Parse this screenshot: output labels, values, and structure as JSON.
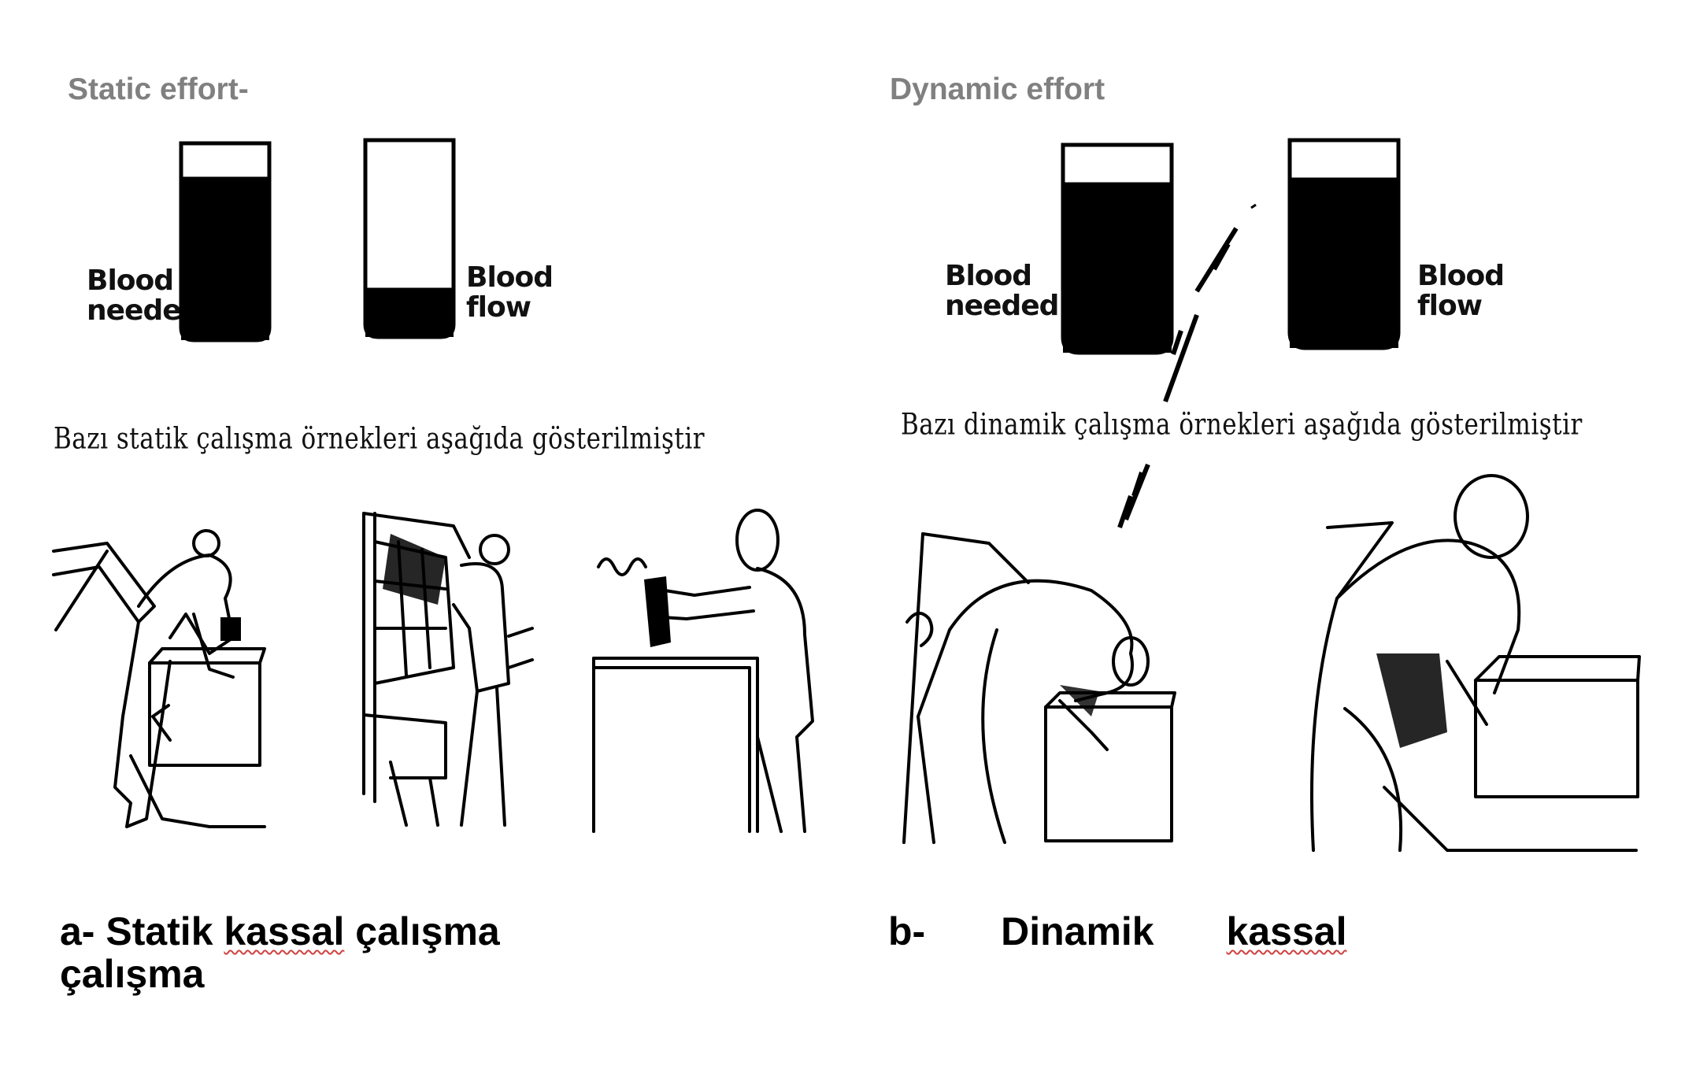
{
  "static": {
    "heading": "Static effort-",
    "jar_needed_label": [
      "Blood",
      "needed"
    ],
    "jar_flow_label": [
      "Blood",
      "flow"
    ],
    "examples_text": "Bazı statik çalışma örnekleri aşağıda gösterilmiştir",
    "caption_prefix": "a- Statik",
    "caption_word2": "kassal",
    "caption_word3": "çalışma",
    "caption_line2": "çalışma"
  },
  "dynamic": {
    "heading": "Dynamic effort",
    "jar_needed_label": [
      "Blood",
      "needed"
    ],
    "jar_flow_label": [
      "Blood",
      "flow"
    ],
    "examples_text": "Bazı dinamik çalışma örnekleri aşağıda gösterilmiştir",
    "caption_prefix": "b-",
    "caption_word2": "Dinamik",
    "caption_word3": "kassal"
  },
  "levels": {
    "static_blood_needed": 0.83,
    "static_blood_flow": 0.25,
    "dynamic_blood_needed": 0.82,
    "dynamic_blood_flow": 0.82
  },
  "colors": {
    "heading": "#808080",
    "ink": "#000000",
    "spellcheck": "#d04040"
  }
}
